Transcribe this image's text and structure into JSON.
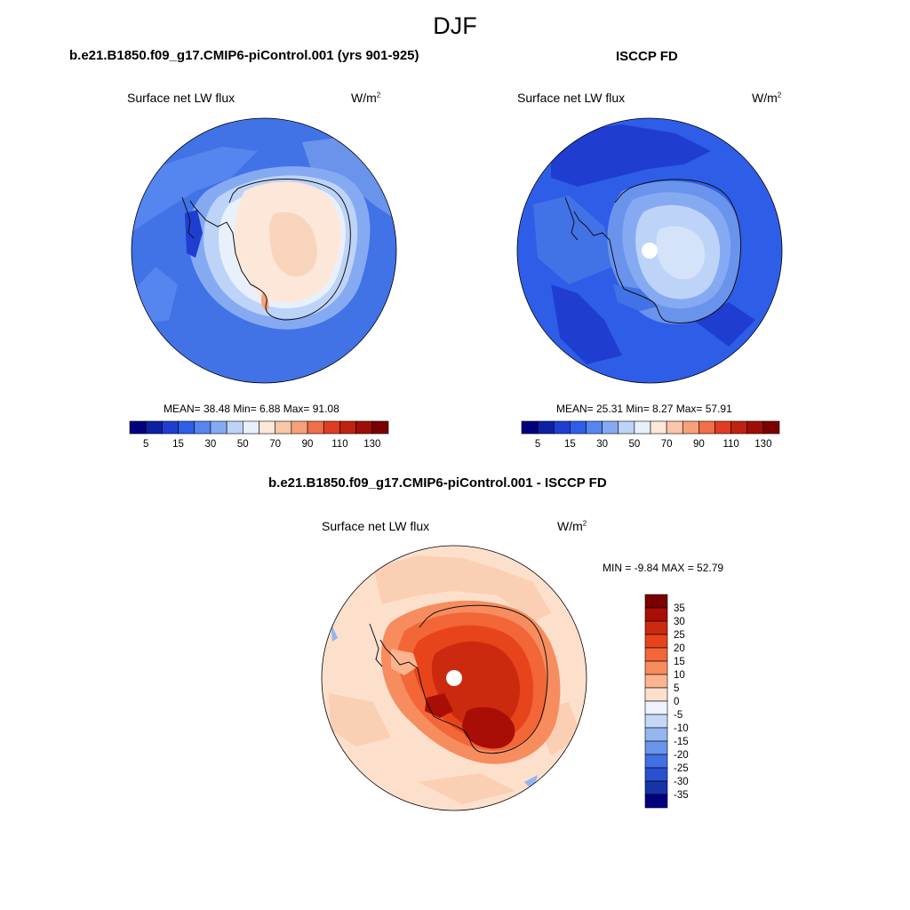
{
  "page": {
    "title": "DJF"
  },
  "panels": [
    {
      "title": "b.e21.B1850.f09_g17.CMIP6-piControl.001 (yrs 901-925)",
      "left_label": "Surface net LW flux",
      "units_base": "W/m",
      "units_exp": "2",
      "stats": "MEAN=  38.48  Min=   6.88  Max=  91.08"
    },
    {
      "title": "ISCCP FD",
      "left_label": "Surface net LW flux",
      "units_base": "W/m",
      "units_exp": "2",
      "stats": "MEAN=  25.31  Min=   8.27  Max=  57.91"
    },
    {
      "title": "b.e21.B1850.f09_g17.CMIP6-piControl.001 - ISCCP FD",
      "left_label": "Surface net LW flux",
      "units_base": "W/m",
      "units_exp": "2",
      "stats": "MIN =  -9.84 MAX =  52.79"
    }
  ],
  "chart_data": [
    {
      "type": "heatmap",
      "projection": "south polar stereographic",
      "title": "b.e21.B1850.f09_g17.CMIP6-piControl.001 (yrs 901-925)",
      "variable": "Surface net LW flux",
      "units": "W/m2",
      "mean": 38.48,
      "min": 6.88,
      "max": 91.08,
      "colorbar_ticks": [
        "5",
        "15",
        "30",
        "50",
        "70",
        "90",
        "110",
        "130"
      ],
      "colorbar_colors": [
        "#00007f",
        "#0d1fa3",
        "#1f3ed1",
        "#2e5ee8",
        "#5585ee",
        "#86aaf2",
        "#bdd3f8",
        "#e8f0fc",
        "#fde7d8",
        "#f9c6a9",
        "#f6a17a",
        "#f06e48",
        "#e03c22",
        "#c0220f",
        "#9e0e07",
        "#7a0000"
      ],
      "colorbar_orientation": "horizontal"
    },
    {
      "type": "heatmap",
      "projection": "south polar stereographic",
      "title": "ISCCP FD",
      "variable": "Surface net LW flux",
      "units": "W/m2",
      "mean": 25.31,
      "min": 8.27,
      "max": 57.91,
      "colorbar_ticks": [
        "5",
        "15",
        "30",
        "50",
        "70",
        "90",
        "110",
        "130"
      ],
      "colorbar_colors": [
        "#00007f",
        "#0d1fa3",
        "#1f3ed1",
        "#2e5ee8",
        "#5585ee",
        "#86aaf2",
        "#bdd3f8",
        "#e8f0fc",
        "#fde7d8",
        "#f9c6a9",
        "#f6a17a",
        "#f06e48",
        "#e03c22",
        "#c0220f",
        "#9e0e07",
        "#7a0000"
      ],
      "colorbar_orientation": "horizontal"
    },
    {
      "type": "heatmap",
      "projection": "south polar stereographic",
      "title": "b.e21.B1850.f09_g17.CMIP6-piControl.001 - ISCCP FD",
      "variable": "Surface net LW flux",
      "units": "W/m2",
      "min": -9.84,
      "max": 52.79,
      "colorbar_ticks": [
        "35",
        "30",
        "25",
        "20",
        "15",
        "10",
        "5",
        "0",
        "-5",
        "-10",
        "-15",
        "-20",
        "-25",
        "-30",
        "-35"
      ],
      "colorbar_colors": [
        "#7a0000",
        "#a80e05",
        "#cc2a0f",
        "#e8441c",
        "#f26638",
        "#f78c5e",
        "#fbb48e",
        "#fde0cc",
        "#eef4fd",
        "#c4d8f7",
        "#94b6f1",
        "#6a93ec",
        "#4170e5",
        "#2a50cf",
        "#1633a8",
        "#00007f"
      ],
      "colorbar_orientation": "vertical"
    }
  ]
}
